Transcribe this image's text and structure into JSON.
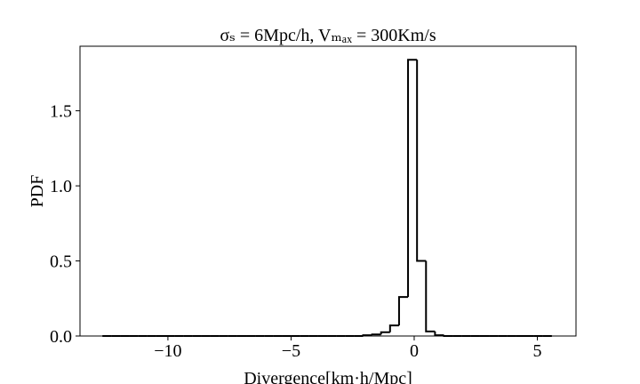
{
  "chart_data": {
    "type": "histogram",
    "title": "σₛ = 6Mpc/h, Vₘₐₓ = 300Km/s",
    "xlabel": "Divergence[km·h/Mpc]",
    "ylabel": "PDF",
    "bins": [
      -12.66,
      -12.295,
      -11.93,
      -11.565,
      -11.2,
      -10.835,
      -10.47,
      -10.105,
      -9.74,
      -9.375,
      -9.01,
      -8.645,
      -8.28,
      -7.915,
      -7.55,
      -7.185,
      -6.82,
      -6.455,
      -6.09,
      -5.725,
      -5.36,
      -4.995,
      -4.63,
      -4.265,
      -3.9,
      -3.535,
      -3.17,
      -2.805,
      -2.44,
      -2.075,
      -1.71,
      -1.345,
      -0.98,
      -0.615,
      -0.25,
      0.115,
      0.48,
      0.845,
      1.21,
      1.575,
      1.94,
      2.305,
      2.67,
      3.035,
      3.4,
      3.765,
      4.13,
      4.495,
      4.86,
      5.225,
      5.59
    ],
    "values": [
      0,
      0,
      0,
      0,
      0,
      0,
      0,
      0,
      0,
      0,
      0,
      0,
      0,
      0,
      0,
      0,
      0,
      0,
      0,
      0,
      0,
      0,
      0,
      0,
      0,
      0,
      0,
      0,
      0,
      0.005,
      0.01,
      0.025,
      0.07,
      0.26,
      1.84,
      0.5,
      0.03,
      0.005,
      0,
      0,
      0,
      0,
      0,
      0,
      0,
      0,
      0,
      0,
      0,
      0
    ],
    "color": "#000000",
    "xlim": [
      -13.57,
      6.57
    ],
    "ylim": [
      0,
      1.93
    ],
    "xticks": [
      {
        "value": -10,
        "label": "−10"
      },
      {
        "value": -5,
        "label": "−5"
      },
      {
        "value": 0,
        "label": "0"
      },
      5
    ],
    "yticks": [
      {
        "value": 0,
        "label": "0.0"
      },
      0.5,
      {
        "value": 1,
        "label": "1.0"
      },
      1.5
    ]
  }
}
